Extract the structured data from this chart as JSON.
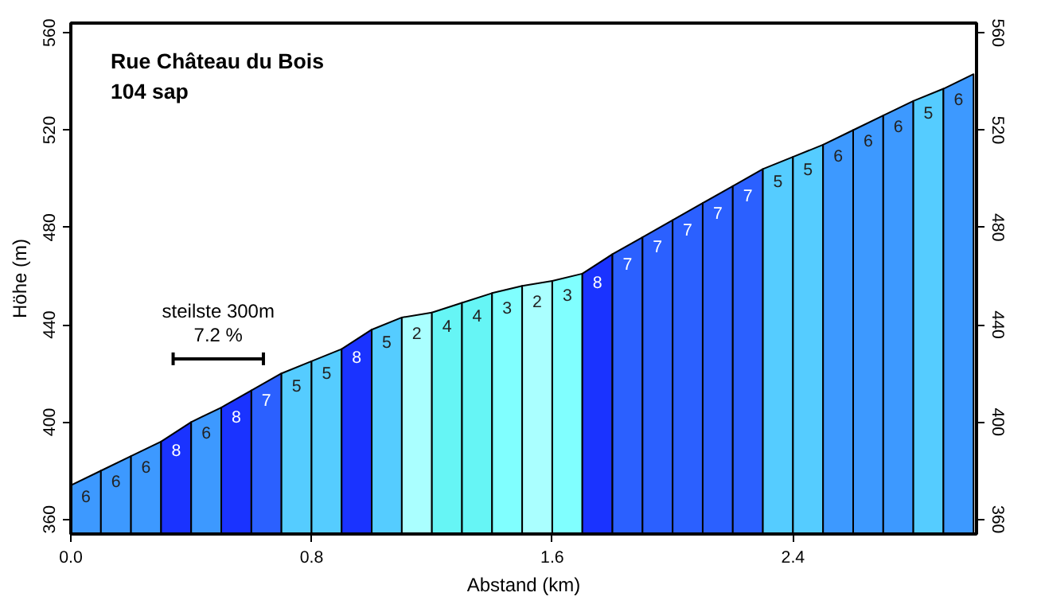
{
  "chart_data": {
    "type": "area",
    "title": "Rue Château du Bois",
    "subtitle": "104 sap",
    "xlabel": "Abstand (km)",
    "ylabel": "Höhe (m)",
    "series": [
      {
        "x": [
          0,
          0.1
        ],
        "values": [
          374,
          380
        ],
        "color": "#3d99ff"
      },
      {
        "x": [
          0.1,
          0.2
        ],
        "values": [
          380,
          386
        ],
        "color": "#3d99ff"
      },
      {
        "x": [
          0.2,
          0.3
        ],
        "values": [
          386,
          392
        ],
        "color": "#3d99ff"
      },
      {
        "x": [
          0.3,
          0.4
        ],
        "values": [
          392,
          400
        ],
        "color": "#1a33ff"
      },
      {
        "x": [
          0.4,
          0.5
        ],
        "values": [
          400,
          406
        ],
        "color": "#3d99ff"
      },
      {
        "x": [
          0.5,
          0.6
        ],
        "values": [
          406,
          413
        ],
        "color": "#1a33ff"
      },
      {
        "x": [
          0.6,
          0.7
        ],
        "values": [
          413,
          420
        ],
        "color": "#2b60ff"
      },
      {
        "x": [
          0.7,
          0.8
        ],
        "values": [
          420,
          425
        ],
        "color": "#55ccff"
      },
      {
        "x": [
          0.8,
          0.9
        ],
        "values": [
          425,
          430
        ],
        "color": "#55ccff"
      },
      {
        "x": [
          0.9,
          1.0
        ],
        "values": [
          430,
          438
        ],
        "color": "#1a33ff"
      },
      {
        "x": [
          1.0,
          1.1
        ],
        "values": [
          438,
          443
        ],
        "color": "#55ccff"
      },
      {
        "x": [
          1.1,
          1.2
        ],
        "values": [
          443,
          445
        ],
        "color": "#aaffff"
      },
      {
        "x": [
          1.2,
          1.3
        ],
        "values": [
          445,
          449
        ],
        "color": "#66f5f5"
      },
      {
        "x": [
          1.3,
          1.4
        ],
        "values": [
          449,
          453
        ],
        "color": "#66f5f5"
      },
      {
        "x": [
          1.4,
          1.5
        ],
        "values": [
          453,
          456
        ],
        "color": "#80ffff"
      },
      {
        "x": [
          1.5,
          1.6
        ],
        "values": [
          456,
          458
        ],
        "color": "#aaffff"
      },
      {
        "x": [
          1.6,
          1.7
        ],
        "values": [
          458,
          461
        ],
        "color": "#80ffff"
      },
      {
        "x": [
          1.7,
          1.8
        ],
        "values": [
          461,
          469
        ],
        "color": "#1a33ff"
      },
      {
        "x": [
          1.8,
          1.9
        ],
        "values": [
          469,
          476
        ],
        "color": "#2b60ff"
      },
      {
        "x": [
          1.9,
          2.0
        ],
        "values": [
          476,
          483
        ],
        "color": "#2b60ff"
      },
      {
        "x": [
          2.0,
          2.1
        ],
        "values": [
          483,
          490
        ],
        "color": "#2b60ff"
      },
      {
        "x": [
          2.1,
          2.2
        ],
        "values": [
          490,
          497
        ],
        "color": "#2b60ff"
      },
      {
        "x": [
          2.2,
          2.3
        ],
        "values": [
          497,
          504
        ],
        "color": "#2b60ff"
      },
      {
        "x": [
          2.3,
          2.4
        ],
        "values": [
          504,
          509
        ],
        "color": "#55ccff"
      },
      {
        "x": [
          2.4,
          2.5
        ],
        "values": [
          509,
          514
        ],
        "color": "#55ccff"
      },
      {
        "x": [
          2.5,
          2.6
        ],
        "values": [
          514,
          520
        ],
        "color": "#3d99ff"
      },
      {
        "x": [
          2.6,
          2.7
        ],
        "values": [
          520,
          526
        ],
        "color": "#3d99ff"
      },
      {
        "x": [
          2.7,
          2.8
        ],
        "values": [
          526,
          532
        ],
        "color": "#3d99ff"
      },
      {
        "x": [
          2.8,
          2.9
        ],
        "values": [
          532,
          537
        ],
        "color": "#55ccff"
      },
      {
        "x": [
          2.9,
          3.0
        ],
        "values": [
          537,
          543
        ],
        "color": "#3d99ff"
      },
      {
        "type": "line",
        "x": [
          0.34,
          0.64
        ],
        "values": [
          426,
          426
        ],
        "color": "#000000"
      }
    ],
    "annotations": [
      "6",
      "6",
      "6",
      "8",
      "6",
      "8",
      "7",
      "5",
      "5",
      "8",
      "5",
      "2",
      "4",
      "4",
      "3",
      "2",
      "3",
      "8",
      "7",
      "7",
      "7",
      "7",
      "7",
      "5",
      "5",
      "6",
      "6",
      "6",
      "5",
      "6",
      {
        "text": "steilste 300m",
        "x": 0.49,
        "y": 426
      },
      {
        "text": "7.2 %",
        "x": 0.49,
        "y": 426
      }
    ],
    "xlim": [
      0,
      3.01
    ],
    "xticks": [
      {
        "value": 0,
        "label": "0.0"
      },
      0.8,
      1.6,
      2.4
    ],
    "ylim": [
      354,
      564
    ],
    "yticks": [
      360,
      400,
      440,
      480,
      520,
      560
    ],
    "y2lim": [
      354,
      564
    ],
    "y2ticks": [
      360,
      400,
      440,
      480,
      520,
      560
    ],
    "grid": false
  }
}
